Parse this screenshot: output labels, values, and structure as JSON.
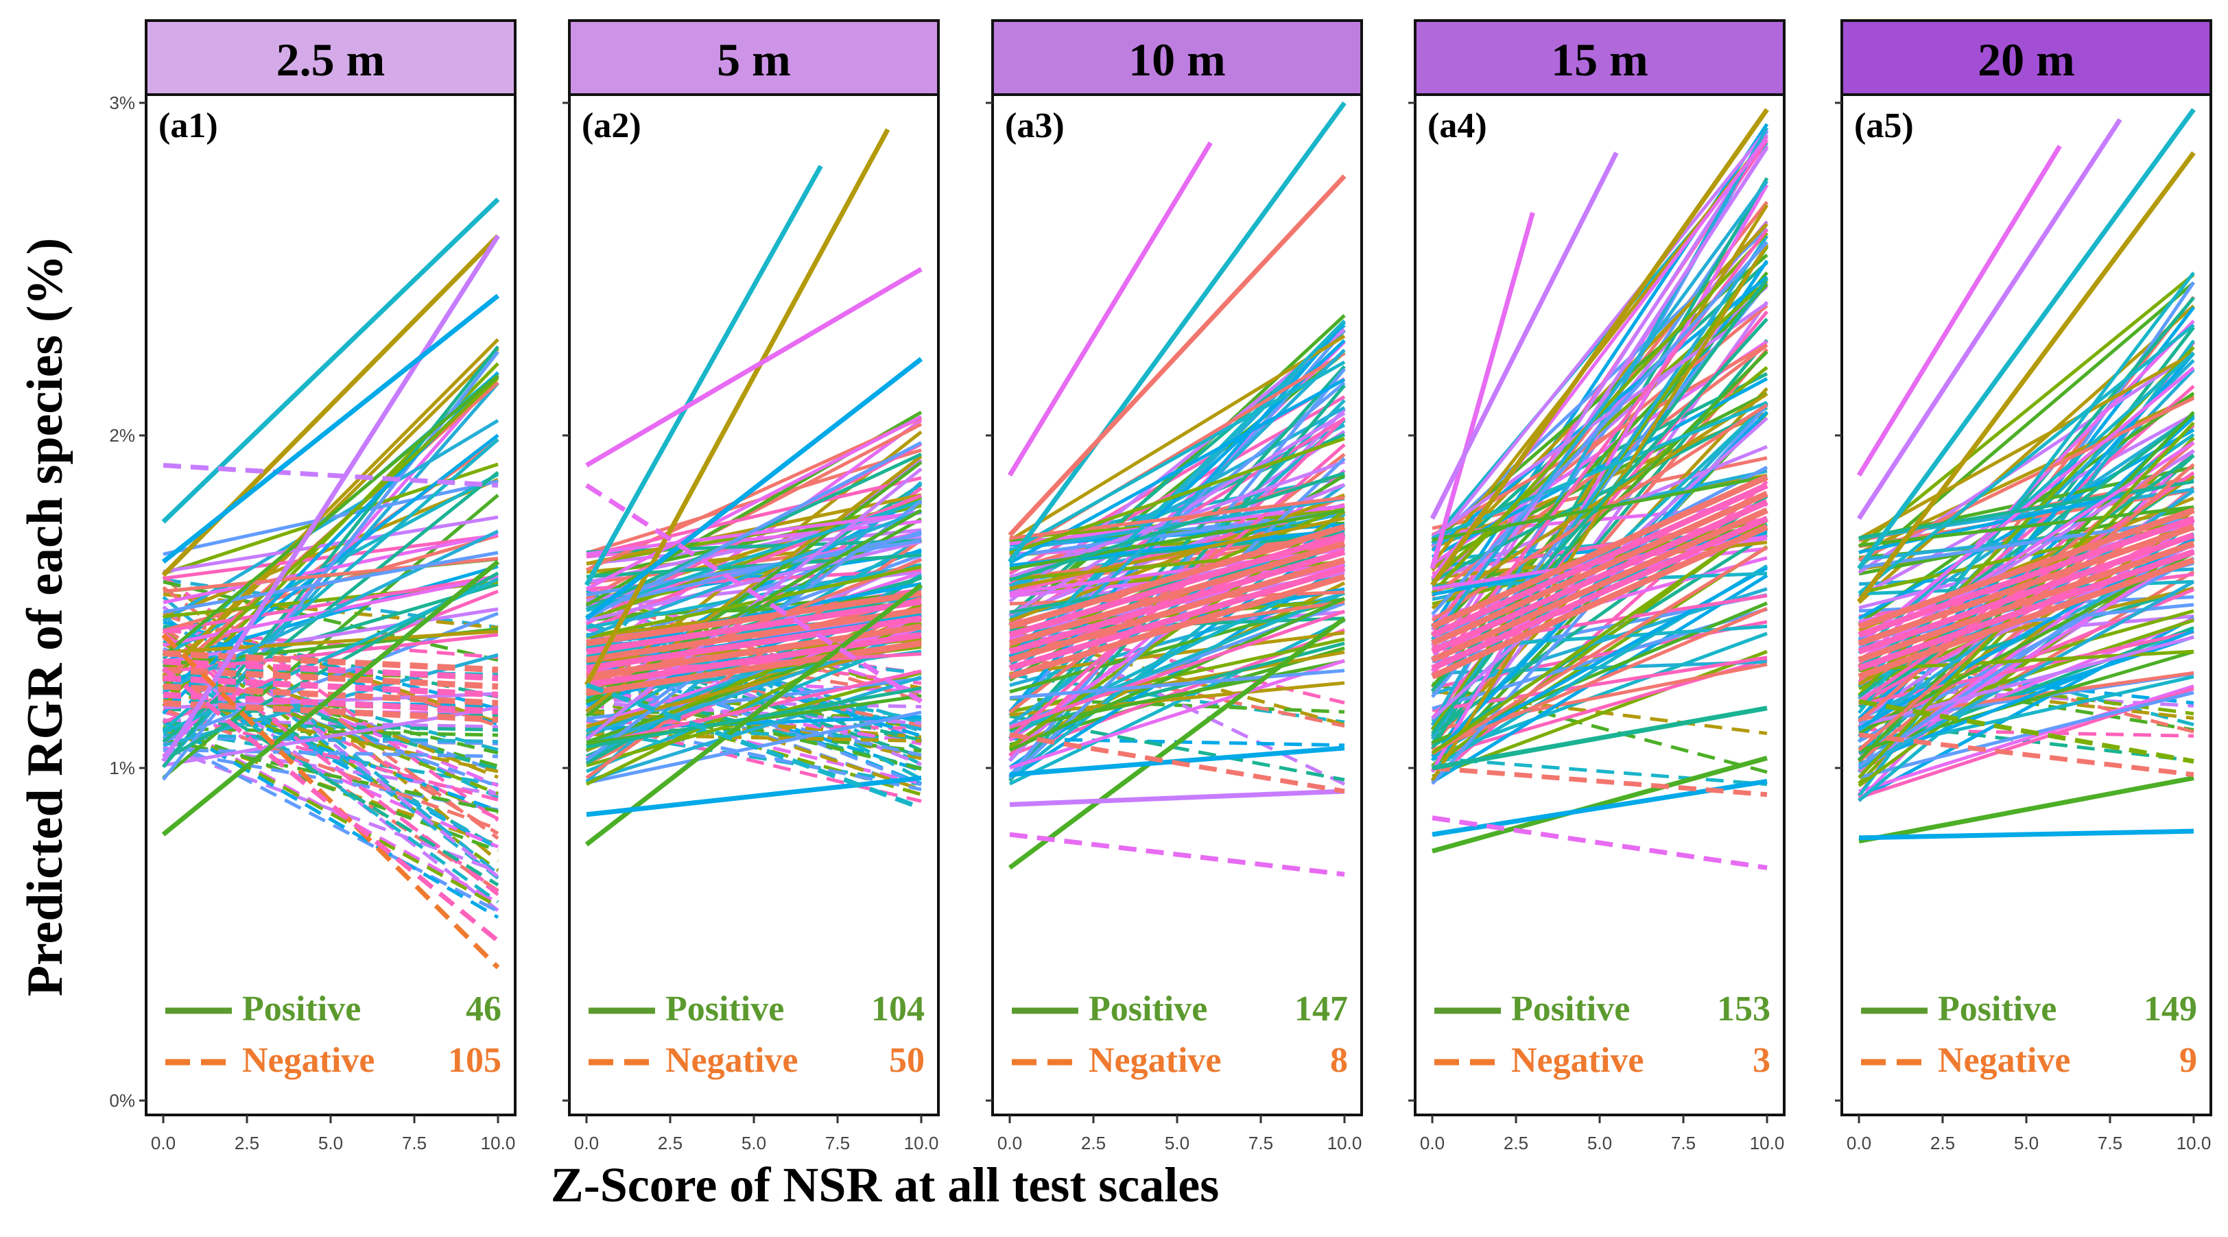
{
  "chart_data": {
    "type": "line",
    "ylabel": "Predicted RGR of each species (%)",
    "xlabel": "Z-Score of NSR at all test scales",
    "xlim": [
      0,
      10
    ],
    "ylim": [
      0,
      3
    ],
    "x_ticks": [
      "0.0",
      "2.5",
      "5.0",
      "7.5",
      "10.0"
    ],
    "x_tick_values": [
      0,
      2.5,
      5,
      7.5,
      10
    ],
    "y_ticks": [
      "0%",
      "1%",
      "2%",
      "3%"
    ],
    "y_tick_values": [
      0,
      1,
      2,
      3
    ],
    "legend": {
      "position": "bottom",
      "positive_label": "Positive",
      "negative_label": "Negative",
      "positive_color": "#5b9a2e",
      "negative_color": "#ef7a2f"
    },
    "palette": [
      "#19b5c9",
      "#b39a0a",
      "#4caf26",
      "#f2766e",
      "#c77cff",
      "#00a9e8",
      "#ff62bc",
      "#1ab394",
      "#7cae00",
      "#619cff",
      "#e76bf3",
      "#24aed6"
    ],
    "panels": [
      {
        "scale": "2.5 m",
        "tag": "(a1)",
        "header_color": "#d4abe8",
        "positive_count": "46",
        "negative_count": "105",
        "highlight_series": [
          {
            "x": [
              0,
              10
            ],
            "y": [
              1.74,
              2.71
            ],
            "dash": false,
            "color": "#19b5c9"
          },
          {
            "x": [
              0,
              10
            ],
            "y": [
              1.58,
              2.6
            ],
            "dash": false,
            "color": "#b39a0a"
          },
          {
            "x": [
              0,
              10
            ],
            "y": [
              1.91,
              1.85
            ],
            "dash": true,
            "color": "#c77cff"
          },
          {
            "x": [
              0,
              10
            ],
            "y": [
              0.8,
              1.62
            ],
            "dash": false,
            "color": "#4caf26"
          },
          {
            "x": [
              0,
              10
            ],
            "y": [
              1.02,
              2.6
            ],
            "dash": false,
            "color": "#c77cff"
          },
          {
            "x": [
              0,
              10
            ],
            "y": [
              1.4,
              0.4
            ],
            "dash": true,
            "color": "#ef7a2f"
          },
          {
            "x": [
              0,
              10
            ],
            "y": [
              1.3,
              0.48
            ],
            "dash": true,
            "color": "#ff62bc"
          },
          {
            "x": [
              0,
              10
            ],
            "y": [
              1.62,
              2.42
            ],
            "dash": false,
            "color": "#00a9e8"
          }
        ],
        "bundle": {
          "x": [
            0,
            10
          ],
          "positive": {
            "start": [
              0.95,
              1.65
            ],
            "end": [
              1.1,
              2.3
            ]
          },
          "negative": {
            "start": [
              1.05,
              1.6
            ],
            "end": [
              0.55,
              1.45
            ]
          },
          "thick_band": {
            "start": 1.27,
            "end": 1.22
          }
        }
      },
      {
        "scale": "5 m",
        "tag": "(a2)",
        "header_color": "#cc93e6",
        "positive_count": "104",
        "negative_count": "50",
        "highlight_series": [
          {
            "x": [
              0,
              7
            ],
            "y": [
              1.55,
              2.81
            ],
            "dash": false,
            "color": "#19b5c9"
          },
          {
            "x": [
              0,
              9
            ],
            "y": [
              1.25,
              2.92
            ],
            "dash": false,
            "color": "#b39a0a"
          },
          {
            "x": [
              0,
              10
            ],
            "y": [
              1.91,
              2.5
            ],
            "dash": false,
            "color": "#e76bf3"
          },
          {
            "x": [
              0,
              10
            ],
            "y": [
              0.77,
              1.55
            ],
            "dash": false,
            "color": "#4caf26"
          },
          {
            "x": [
              0,
              10
            ],
            "y": [
              0.86,
              0.97
            ],
            "dash": false,
            "color": "#00a9e8"
          },
          {
            "x": [
              0,
              10
            ],
            "y": [
              1.45,
              2.23
            ],
            "dash": false,
            "color": "#00a9e8"
          },
          {
            "x": [
              0,
              10
            ],
            "y": [
              1.85,
              1.2
            ],
            "dash": true,
            "color": "#e76bf3"
          },
          {
            "x": [
              0,
              10
            ],
            "y": [
              1.25,
              0.88
            ],
            "dash": true,
            "color": "#19b5c9"
          }
        ],
        "bundle": {
          "x": [
            0,
            10
          ],
          "positive": {
            "start": [
              0.95,
              1.65
            ],
            "end": [
              1.15,
              2.1
            ]
          },
          "negative": {
            "start": [
              1.1,
              1.55
            ],
            "end": [
              0.9,
              1.3
            ]
          },
          "thick_band": {
            "start": 1.3,
            "end": 1.45
          }
        }
      },
      {
        "scale": "10 m",
        "tag": "(a3)",
        "header_color": "#be7ee0",
        "positive_count": "147",
        "negative_count": "8",
        "highlight_series": [
          {
            "x": [
              0,
              6
            ],
            "y": [
              1.88,
              2.88
            ],
            "dash": false,
            "color": "#e76bf3"
          },
          {
            "x": [
              0,
              10
            ],
            "y": [
              1.62,
              3.0
            ],
            "dash": false,
            "color": "#19b5c9"
          },
          {
            "x": [
              0,
              10
            ],
            "y": [
              1.7,
              2.78
            ],
            "dash": false,
            "color": "#f2766e"
          },
          {
            "x": [
              0,
              10
            ],
            "y": [
              0.7,
              1.45
            ],
            "dash": false,
            "color": "#4caf26"
          },
          {
            "x": [
              0,
              10
            ],
            "y": [
              0.89,
              0.93
            ],
            "dash": false,
            "color": "#c77cff"
          },
          {
            "x": [
              0,
              10
            ],
            "y": [
              0.8,
              0.68
            ],
            "dash": true,
            "color": "#e76bf3"
          },
          {
            "x": [
              0,
              10
            ],
            "y": [
              0.98,
              1.06
            ],
            "dash": false,
            "color": "#00a9e8"
          },
          {
            "x": [
              0,
              10
            ],
            "y": [
              1.1,
              0.93
            ],
            "dash": true,
            "color": "#f2766e"
          }
        ],
        "bundle": {
          "x": [
            0,
            10
          ],
          "positive": {
            "start": [
              0.95,
              1.7
            ],
            "end": [
              1.2,
              2.4
            ]
          },
          "negative": {
            "start": [
              1.05,
              1.45
            ],
            "end": [
              0.95,
              1.2
            ]
          },
          "thick_band": {
            "start": 1.35,
            "end": 1.65
          }
        }
      },
      {
        "scale": "15 m",
        "tag": "(a4)",
        "header_color": "#b068db",
        "positive_count": "153",
        "negative_count": "3",
        "highlight_series": [
          {
            "x": [
              0,
              3
            ],
            "y": [
              1.6,
              2.67
            ],
            "dash": false,
            "color": "#e76bf3"
          },
          {
            "x": [
              0,
              5.5
            ],
            "y": [
              1.75,
              2.85
            ],
            "dash": false,
            "color": "#c77cff"
          },
          {
            "x": [
              0,
              10
            ],
            "y": [
              1.55,
              2.98
            ],
            "dash": false,
            "color": "#b39a0a"
          },
          {
            "x": [
              0,
              10
            ],
            "y": [
              0.75,
              1.03
            ],
            "dash": false,
            "color": "#4caf26"
          },
          {
            "x": [
              0,
              10
            ],
            "y": [
              0.8,
              0.96
            ],
            "dash": false,
            "color": "#00a9e8"
          },
          {
            "x": [
              0,
              10
            ],
            "y": [
              0.85,
              0.7
            ],
            "dash": true,
            "color": "#e76bf3"
          },
          {
            "x": [
              0,
              10
            ],
            "y": [
              1.0,
              0.92
            ],
            "dash": true,
            "color": "#f2766e"
          },
          {
            "x": [
              0,
              10
            ],
            "y": [
              1.0,
              1.18
            ],
            "dash": false,
            "color": "#1ab394"
          }
        ],
        "bundle": {
          "x": [
            0,
            10
          ],
          "positive": {
            "start": [
              0.95,
              1.75
            ],
            "end": [
              1.3,
              2.95
            ]
          },
          "negative": {
            "start": [
              1.0,
              1.4
            ],
            "end": [
              0.95,
              1.15
            ]
          },
          "thick_band": {
            "start": 1.35,
            "end": 1.8
          }
        }
      },
      {
        "scale": "20 m",
        "tag": "(a5)",
        "header_color": "#a24fd5",
        "positive_count": "149",
        "negative_count": "9",
        "highlight_series": [
          {
            "x": [
              0,
              6
            ],
            "y": [
              1.88,
              2.87
            ],
            "dash": false,
            "color": "#e76bf3"
          },
          {
            "x": [
              0,
              7.8
            ],
            "y": [
              1.75,
              2.95
            ],
            "dash": false,
            "color": "#c77cff"
          },
          {
            "x": [
              0,
              10
            ],
            "y": [
              1.6,
              2.98
            ],
            "dash": false,
            "color": "#19b5c9"
          },
          {
            "x": [
              0,
              10
            ],
            "y": [
              1.5,
              2.85
            ],
            "dash": false,
            "color": "#b39a0a"
          },
          {
            "x": [
              0,
              10
            ],
            "y": [
              0.78,
              0.97
            ],
            "dash": false,
            "color": "#4caf26"
          },
          {
            "x": [
              0,
              10
            ],
            "y": [
              0.79,
              0.81
            ],
            "dash": false,
            "color": "#00a9e8"
          },
          {
            "x": [
              0,
              10
            ],
            "y": [
              1.1,
              0.98
            ],
            "dash": true,
            "color": "#f2766e"
          },
          {
            "x": [
              0,
              10
            ],
            "y": [
              1.2,
              1.02
            ],
            "dash": true,
            "color": "#7cae00"
          }
        ],
        "bundle": {
          "x": [
            0,
            10
          ],
          "positive": {
            "start": [
              0.9,
              1.7
            ],
            "end": [
              1.2,
              2.5
            ]
          },
          "negative": {
            "start": [
              1.05,
              1.4
            ],
            "end": [
              1.0,
              1.2
            ]
          },
          "thick_band": {
            "start": 1.35,
            "end": 1.7
          }
        }
      }
    ]
  }
}
